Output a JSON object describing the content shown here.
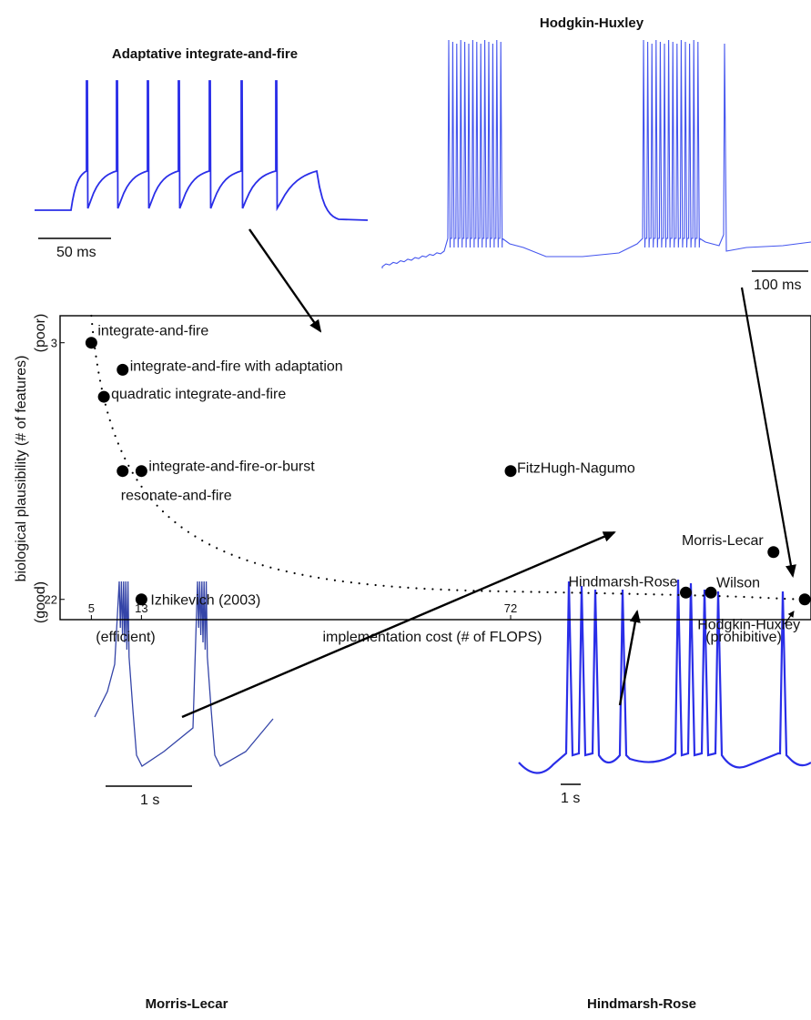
{
  "panels": {
    "aif": {
      "title": "Adaptative integrate-and-fire",
      "scalebar": "50 ms"
    },
    "hh": {
      "title": "Hodgkin-Huxley",
      "scalebar": "100 ms"
    },
    "ml": {
      "title": "Morris-Lecar",
      "scalebar": "1 s"
    },
    "hr": {
      "title": "Hindmarsh-Rose",
      "scalebar": "1 s"
    }
  },
  "colors": {
    "trace": "#2a2ee8",
    "trace_light": "#4455ee",
    "trace_dark": "#3545a8",
    "marker": "#000000"
  },
  "chart_data": {
    "type": "scatter",
    "xlabel": "implementation cost (# of FLOPS)",
    "ylabel": "biological plausibility (# of features)",
    "x_end_labels": {
      "left": "(efficient)",
      "right": "(prohibitive)"
    },
    "y_end_labels": {
      "top": "(poor)",
      "bottom": "(good)"
    },
    "x_ticks": [
      "5",
      "13",
      "72"
    ],
    "y_ticks": [
      "3",
      "22"
    ],
    "xlim": [
      0,
      120
    ],
    "ylim": [
      23.5,
      1
    ],
    "points": [
      {
        "label": "integrate-and-fire",
        "x": 5,
        "y": 3
      },
      {
        "label": "integrate-and-fire with adaptation",
        "x": 10,
        "y": 5
      },
      {
        "label": "quadratic integrate-and-fire",
        "x": 7,
        "y": 7
      },
      {
        "label": "integrate-and-fire-or-burst",
        "x": 13,
        "y": 12.5
      },
      {
        "label": "resonate-and-fire",
        "x": 10,
        "y": 12.5
      },
      {
        "label": "FitzHugh-Nagumo",
        "x": 72,
        "y": 12.5
      },
      {
        "label": "Morris-Lecar",
        "x": 114,
        "y": 18.5
      },
      {
        "label": "Hindmarsh-Rose",
        "x": 100,
        "y": 21.5
      },
      {
        "label": "Wilson",
        "x": 104,
        "y": 21.5
      },
      {
        "label": "Hodgkin-Huxley",
        "x": 119,
        "y": 22
      },
      {
        "label": "Izhikevich (2003)",
        "x": 13,
        "y": 22
      }
    ]
  }
}
